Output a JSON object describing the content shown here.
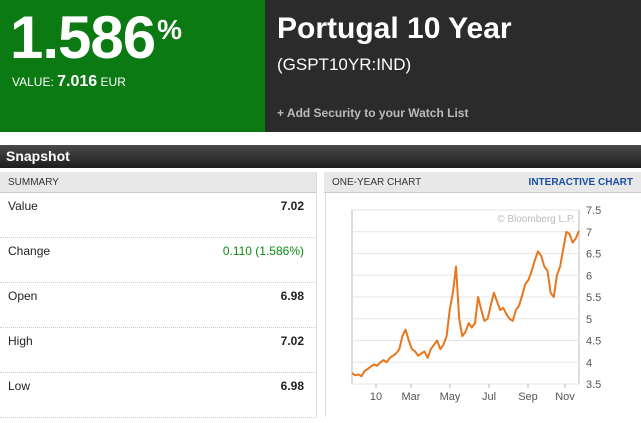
{
  "header": {
    "yield_value": "1.586",
    "yield_pct": "%",
    "value_label": "VALUE:",
    "value_number": "7.016",
    "value_currency": "EUR",
    "title": "Portugal 10 Year",
    "ticker": "(GSPT10YR:IND)",
    "watch_link": "+ Add Security to your Watch List"
  },
  "snapshot": {
    "title": "Snapshot"
  },
  "summary": {
    "header": "SUMMARY",
    "rows": [
      {
        "label": "Value",
        "value": "7.02"
      },
      {
        "label": "Change",
        "value": "0.110 (1.586%)"
      },
      {
        "label": "Open",
        "value": "6.98"
      },
      {
        "label": "High",
        "value": "7.02"
      },
      {
        "label": "Low",
        "value": "6.98"
      }
    ]
  },
  "chart_panel": {
    "header": "ONE-YEAR CHART",
    "link": "INTERACTIVE CHART",
    "watermark": "© Bloomberg L.P."
  },
  "colors": {
    "green": "#0b7a13",
    "dark": "#2b2b2b",
    "line": "#e8761c",
    "link": "#1a4ea6"
  },
  "chart_data": {
    "type": "line",
    "title": "",
    "xlabel": "",
    "ylabel": "",
    "ylim": [
      3.5,
      7.5
    ],
    "yticks": [
      "7.5",
      "7",
      "6.5",
      "6",
      "5.5",
      "5",
      "4.5",
      "4",
      "3.5"
    ],
    "xticks": [
      "10",
      "Mar",
      "May",
      "Jul",
      "Sep",
      "Nov"
    ],
    "grid": true,
    "series": [
      {
        "values": [
          3.75,
          3.7,
          3.72,
          3.68,
          3.8,
          3.85,
          3.9,
          3.95,
          3.92,
          4.0,
          4.05,
          4.0,
          4.1,
          4.15,
          4.2,
          4.3,
          4.6,
          4.75,
          4.5,
          4.3,
          4.25,
          4.15,
          4.2,
          4.25,
          4.1,
          4.3,
          4.4,
          4.5,
          4.3,
          4.4,
          4.6,
          5.2,
          5.6,
          6.2,
          5.0,
          4.6,
          4.7,
          4.9,
          4.8,
          4.9,
          5.5,
          5.2,
          4.95,
          5.0,
          5.3,
          5.6,
          5.4,
          5.2,
          5.25,
          5.1,
          5.0,
          4.95,
          5.2,
          5.3,
          5.55,
          5.8,
          5.9,
          6.1,
          6.35,
          6.55,
          6.45,
          6.2,
          6.1,
          5.6,
          5.5,
          6.0,
          6.2,
          6.6,
          7.0,
          6.95,
          6.75,
          6.85,
          7.02
        ]
      }
    ]
  }
}
